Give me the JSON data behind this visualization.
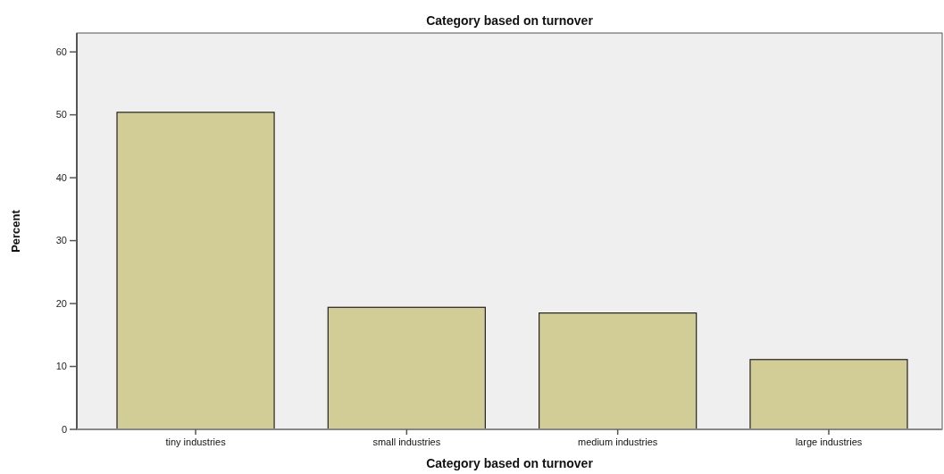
{
  "chart_data": {
    "type": "bar",
    "title": "Category based on turnover",
    "xlabel": "Category based on turnover",
    "ylabel": "Percent",
    "categories": [
      "tiny industries",
      "small industries",
      "medium industries",
      "large industries"
    ],
    "values": [
      50.4,
      19.4,
      18.5,
      11.1
    ],
    "color": "#d2cd96",
    "ylim": [
      0,
      63
    ],
    "yticks": [
      0,
      10,
      20,
      30,
      40,
      50,
      60
    ],
    "grid": false
  }
}
